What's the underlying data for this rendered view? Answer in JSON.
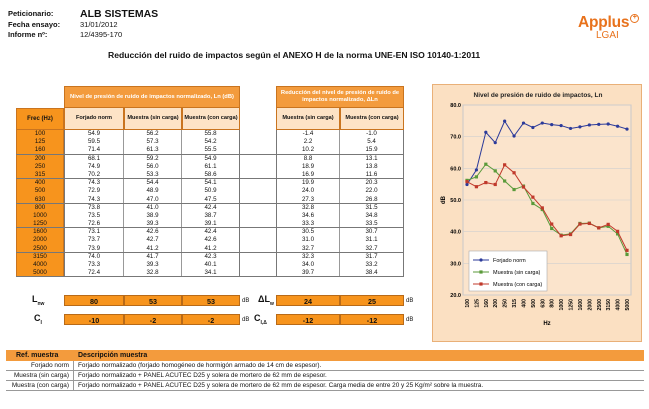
{
  "header": {
    "petitioner_label": "Peticionario:",
    "petitioner_value": "ALB SISTEMAS",
    "date_label": "Fecha ensayo:",
    "date_value": "31/01/2012",
    "report_label": "Informe nº:",
    "report_value": "12/4395-170"
  },
  "logo": {
    "brand": "Applus",
    "plus": "+",
    "sub": "LGAI"
  },
  "title": "Reducción del ruido de impactos según el ANEXO H de la norma UNE-EN ISO 10140-1:2011",
  "table": {
    "freq_header": "Frec (Hz)",
    "group1_header": "Nivel de presión de ruido de impactos normalizado, Ln (dB)",
    "group2_header": "Reducción del nivel de presión de ruido de impactos normalizado, ΔLn",
    "col_forjado": "Forjado norm",
    "col_sin": "Muestra (sin carga)",
    "col_con": "Muestra (con carga)",
    "col_sin2": "Muestra (sin carga)",
    "col_con2": "Muestra (con carga)",
    "rows": [
      {
        "f": "100",
        "a": "54.9",
        "b": "56.2",
        "c": "55.8",
        "d": "-1.4",
        "e": "-1.0"
      },
      {
        "f": "125",
        "a": "59.5",
        "b": "57.3",
        "c": "54.2",
        "d": "2.2",
        "e": "5.4"
      },
      {
        "f": "160",
        "a": "71.4",
        "b": "61.3",
        "c": "55.5",
        "d": "10.2",
        "e": "15.9"
      },
      {
        "f": "200",
        "a": "68.1",
        "b": "59.2",
        "c": "54.9",
        "d": "8.8",
        "e": "13.1"
      },
      {
        "f": "250",
        "a": "74.9",
        "b": "56.0",
        "c": "61.1",
        "d": "18.9",
        "e": "13.8"
      },
      {
        "f": "315",
        "a": "70.2",
        "b": "53.3",
        "c": "58.6",
        "d": "16.9",
        "e": "11.6"
      },
      {
        "f": "400",
        "a": "74.3",
        "b": "54.4",
        "c": "54.1",
        "d": "19.9",
        "e": "20.3"
      },
      {
        "f": "500",
        "a": "72.9",
        "b": "48.9",
        "c": "50.9",
        "d": "24.0",
        "e": "22.0"
      },
      {
        "f": "630",
        "a": "74.3",
        "b": "47.0",
        "c": "47.5",
        "d": "27.3",
        "e": "26.8"
      },
      {
        "f": "800",
        "a": "73.8",
        "b": "41.0",
        "c": "42.4",
        "d": "32.8",
        "e": "31.5"
      },
      {
        "f": "1000",
        "a": "73.5",
        "b": "38.9",
        "c": "38.7",
        "d": "34.6",
        "e": "34.8"
      },
      {
        "f": "1250",
        "a": "72.6",
        "b": "39.3",
        "c": "39.1",
        "d": "33.3",
        "e": "33.5"
      },
      {
        "f": "1600",
        "a": "73.1",
        "b": "42.6",
        "c": "42.4",
        "d": "30.5",
        "e": "30.7"
      },
      {
        "f": "2000",
        "a": "73.7",
        "a2": "",
        "b": "42.7",
        "c": "42.6",
        "d": "31.0",
        "e": "31.1"
      },
      {
        "f": "2500",
        "a": "73.9",
        "b": "41.2",
        "c": "41.2",
        "d": "32.7",
        "e": "32.7"
      },
      {
        "f": "3150",
        "a": "74.0",
        "b": "41.7",
        "c": "42.3",
        "d": "32.3",
        "e": "31.7"
      },
      {
        "f": "4000",
        "a": "73.3",
        "b": "39.3",
        "c": "40.1",
        "d": "34.0",
        "e": "33.2"
      },
      {
        "f": "5000",
        "a": "72.4",
        "b": "32.8",
        "c": "34.1",
        "d": "39.7",
        "e": "38.4"
      }
    ]
  },
  "summary": {
    "lnw_label": "L",
    "lnw_sub": "nw",
    "lnw_values": [
      "80",
      "53",
      "53"
    ],
    "dlw_label": "ΔL",
    "dlw_sub": "w",
    "dlw_values": [
      "24",
      "25"
    ],
    "ci_label": "C",
    "ci_sub": "I",
    "ci_values": [
      "-10",
      "-2",
      "-2"
    ],
    "cid_label": "C",
    "cid_sub": "I,Δ",
    "cid_values": [
      "-12",
      "-12"
    ],
    "unit": "dB"
  },
  "description": {
    "col1": "Ref. muestra",
    "col2": "Descripción muestra",
    "rows": [
      {
        "ref": "Forjado norm",
        "text": "Forjado normalizado (forjado homogéneo de hormigón armado de 14 cm de espesor)."
      },
      {
        "ref": "Muestra (sin carga)",
        "text": "Forjado normalizado + PANEL ACUTEC D25 y solera de mortero de 62 mm de espesor."
      },
      {
        "ref": "Muestra (con carga)",
        "text": "Forjado normalizado + PANEL ACUTEC D25 y solera de mortero de 62 mm de espesor. Carga media de entre 20 y 25 Kg/m² sobre la muestra."
      }
    ]
  },
  "chart_data": {
    "type": "line",
    "title": "Nivel de presión de ruido de impactos, Ln",
    "xlabel": "Hz",
    "ylabel": "dB",
    "ylim": [
      20,
      80
    ],
    "yticks": [
      "80.0",
      "70.0",
      "60.0",
      "50.0",
      "40.0",
      "30.0",
      "20.0"
    ],
    "x": [
      "100",
      "125",
      "160",
      "200",
      "250",
      "315",
      "400",
      "500",
      "630",
      "800",
      "1000",
      "1250",
      "1600",
      "2000",
      "2500",
      "3150",
      "4000",
      "5000"
    ],
    "xtick_labels": [
      "100",
      "160",
      "250",
      "400",
      "630",
      "1000",
      "1600",
      "2500",
      "4000"
    ],
    "series": [
      {
        "name": "Forjado norm",
        "color": "#2b3a9a",
        "values": [
          54.9,
          59.5,
          71.4,
          68.1,
          74.9,
          70.2,
          74.3,
          72.9,
          74.3,
          73.8,
          73.5,
          72.6,
          73.1,
          73.7,
          73.9,
          74.0,
          73.3,
          72.4
        ]
      },
      {
        "name": "Muestra (sin carga)",
        "color": "#5a9a3a",
        "values": [
          56.2,
          57.3,
          61.3,
          59.2,
          56.0,
          53.3,
          54.4,
          48.9,
          47.0,
          41.0,
          38.9,
          39.3,
          42.6,
          42.7,
          41.2,
          41.7,
          39.3,
          32.8
        ]
      },
      {
        "name": "Muestra (con carga)",
        "color": "#c0392b",
        "values": [
          55.8,
          54.2,
          55.5,
          54.9,
          61.1,
          58.6,
          54.1,
          50.9,
          47.5,
          42.4,
          38.7,
          39.1,
          42.4,
          42.6,
          41.2,
          42.3,
          40.1,
          34.1
        ]
      }
    ],
    "legend_position": "bottom-left",
    "grid": true
  }
}
